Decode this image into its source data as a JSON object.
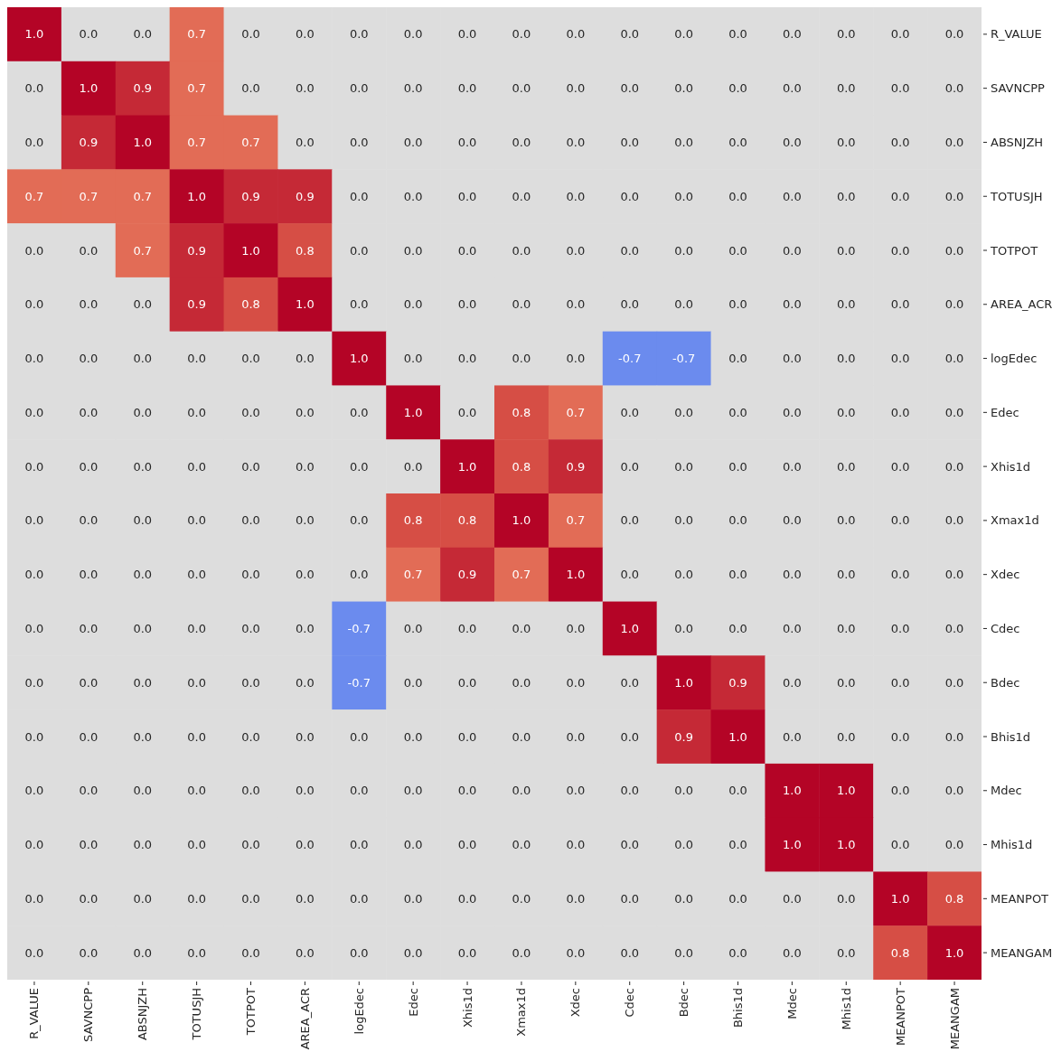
{
  "chart_data": {
    "type": "heatmap",
    "categories": [
      "R_VALUE",
      "SAVNCPP",
      "ABSNJZH",
      "TOTUSJH",
      "TOTPOT",
      "AREA_ACR",
      "logEdec",
      "Edec",
      "Xhis1d",
      "Xmax1d",
      "Xdec",
      "Cdec",
      "Bdec",
      "Bhis1d",
      "Mdec",
      "Mhis1d",
      "MEANPOT",
      "MEANGAM"
    ],
    "y_categories": [
      "R_VALUE",
      "SAVNCPP",
      "ABSNJZH",
      "TOTUSJH",
      "TOTPOT",
      "AREA_ACR",
      "logEdec",
      "Edec",
      "Xhis1d",
      "Xmax1d",
      "Xdec",
      "Cdec",
      "Bdec",
      "Bhis1d",
      "Mdec",
      "Mhis1d",
      "MEANPOT",
      "MEANGAM"
    ],
    "cells": [
      [
        1.0,
        0.0,
        0.0,
        0.7,
        0.0,
        0.0,
        0.0,
        0.0,
        0.0,
        0.0,
        0.0,
        0.0,
        0.0,
        0.0,
        0.0,
        0.0,
        0.0,
        0.0
      ],
      [
        0.0,
        1.0,
        0.9,
        0.7,
        0.0,
        0.0,
        0.0,
        0.0,
        0.0,
        0.0,
        0.0,
        0.0,
        0.0,
        0.0,
        0.0,
        0.0,
        0.0,
        0.0
      ],
      [
        0.0,
        0.9,
        1.0,
        0.7,
        0.7,
        0.0,
        0.0,
        0.0,
        0.0,
        0.0,
        0.0,
        0.0,
        0.0,
        0.0,
        0.0,
        0.0,
        0.0,
        0.0
      ],
      [
        0.7,
        0.7,
        0.7,
        1.0,
        0.9,
        0.9,
        0.0,
        0.0,
        0.0,
        0.0,
        0.0,
        0.0,
        0.0,
        0.0,
        0.0,
        0.0,
        0.0,
        0.0
      ],
      [
        0.0,
        0.0,
        0.7,
        0.9,
        1.0,
        0.8,
        0.0,
        0.0,
        0.0,
        0.0,
        0.0,
        0.0,
        0.0,
        0.0,
        0.0,
        0.0,
        0.0,
        0.0
      ],
      [
        0.0,
        0.0,
        0.0,
        0.9,
        0.8,
        1.0,
        0.0,
        0.0,
        0.0,
        0.0,
        0.0,
        0.0,
        0.0,
        0.0,
        0.0,
        0.0,
        0.0,
        0.0
      ],
      [
        0.0,
        0.0,
        0.0,
        0.0,
        0.0,
        0.0,
        1.0,
        0.0,
        0.0,
        0.0,
        0.0,
        -0.7,
        -0.7,
        0.0,
        0.0,
        0.0,
        0.0,
        0.0
      ],
      [
        0.0,
        0.0,
        0.0,
        0.0,
        0.0,
        0.0,
        0.0,
        1.0,
        0.0,
        0.8,
        0.7,
        0.0,
        0.0,
        0.0,
        0.0,
        0.0,
        0.0,
        0.0
      ],
      [
        0.0,
        0.0,
        0.0,
        0.0,
        0.0,
        0.0,
        0.0,
        0.0,
        1.0,
        0.8,
        0.9,
        0.0,
        0.0,
        0.0,
        0.0,
        0.0,
        0.0,
        0.0
      ],
      [
        0.0,
        0.0,
        0.0,
        0.0,
        0.0,
        0.0,
        0.0,
        0.8,
        0.8,
        1.0,
        0.7,
        0.0,
        0.0,
        0.0,
        0.0,
        0.0,
        0.0,
        0.0
      ],
      [
        0.0,
        0.0,
        0.0,
        0.0,
        0.0,
        0.0,
        0.0,
        0.7,
        0.9,
        0.7,
        1.0,
        0.0,
        0.0,
        0.0,
        0.0,
        0.0,
        0.0,
        0.0
      ],
      [
        0.0,
        0.0,
        0.0,
        0.0,
        0.0,
        0.0,
        -0.7,
        0.0,
        0.0,
        0.0,
        0.0,
        1.0,
        0.0,
        0.0,
        0.0,
        0.0,
        0.0,
        0.0
      ],
      [
        0.0,
        0.0,
        0.0,
        0.0,
        0.0,
        0.0,
        -0.7,
        0.0,
        0.0,
        0.0,
        0.0,
        0.0,
        1.0,
        0.9,
        0.0,
        0.0,
        0.0,
        0.0
      ],
      [
        0.0,
        0.0,
        0.0,
        0.0,
        0.0,
        0.0,
        0.0,
        0.0,
        0.0,
        0.0,
        0.0,
        0.0,
        0.9,
        1.0,
        0.0,
        0.0,
        0.0,
        0.0
      ],
      [
        0.0,
        0.0,
        0.0,
        0.0,
        0.0,
        0.0,
        0.0,
        0.0,
        0.0,
        0.0,
        0.0,
        0.0,
        0.0,
        0.0,
        1.0,
        1.0,
        0.0,
        0.0
      ],
      [
        0.0,
        0.0,
        0.0,
        0.0,
        0.0,
        0.0,
        0.0,
        0.0,
        0.0,
        0.0,
        0.0,
        0.0,
        0.0,
        0.0,
        1.0,
        1.0,
        0.0,
        0.0
      ],
      [
        0.0,
        0.0,
        0.0,
        0.0,
        0.0,
        0.0,
        0.0,
        0.0,
        0.0,
        0.0,
        0.0,
        0.0,
        0.0,
        0.0,
        0.0,
        0.0,
        1.0,
        0.8
      ],
      [
        0.0,
        0.0,
        0.0,
        0.0,
        0.0,
        0.0,
        0.0,
        0.0,
        0.0,
        0.0,
        0.0,
        0.0,
        0.0,
        0.0,
        0.0,
        0.0,
        0.8,
        1.0
      ]
    ],
    "cell_labels": [
      [
        "1.0",
        "0.0",
        "0.0",
        "0.7",
        "0.0",
        "0.0",
        "0.0",
        "0.0",
        "0.0",
        "0.0",
        "0.0",
        "0.0",
        "0.0",
        "0.0",
        "0.0",
        "0.0",
        "0.0",
        "0.0"
      ],
      [
        "0.0",
        "1.0",
        "0.9",
        "0.7",
        "0.0",
        "0.0",
        "0.0",
        "0.0",
        "0.0",
        "0.0",
        "0.0",
        "0.0",
        "0.0",
        "0.0",
        "0.0",
        "0.0",
        "0.0",
        "0.0"
      ],
      [
        "0.0",
        "0.9",
        "1.0",
        "0.7",
        "0.7",
        "0.0",
        "0.0",
        "0.0",
        "0.0",
        "0.0",
        "0.0",
        "0.0",
        "0.0",
        "0.0",
        "0.0",
        "0.0",
        "0.0",
        "0.0"
      ],
      [
        "0.7",
        "0.7",
        "0.7",
        "1.0",
        "0.9",
        "0.9",
        "0.0",
        "0.0",
        "0.0",
        "0.0",
        "0.0",
        "0.0",
        "0.0",
        "0.0",
        "0.0",
        "0.0",
        "0.0",
        "0.0"
      ],
      [
        "0.0",
        "0.0",
        "0.7",
        "0.9",
        "1.0",
        "0.8",
        "0.0",
        "0.0",
        "0.0",
        "0.0",
        "0.0",
        "0.0",
        "0.0",
        "0.0",
        "0.0",
        "0.0",
        "0.0",
        "0.0"
      ],
      [
        "0.0",
        "0.0",
        "0.0",
        "0.9",
        "0.8",
        "1.0",
        "0.0",
        "0.0",
        "0.0",
        "0.0",
        "0.0",
        "0.0",
        "0.0",
        "0.0",
        "0.0",
        "0.0",
        "0.0",
        "0.0"
      ],
      [
        "0.0",
        "0.0",
        "0.0",
        "0.0",
        "0.0",
        "0.0",
        "1.0",
        "0.0",
        "0.0",
        "0.0",
        "0.0",
        "-0.7",
        "-0.7",
        "0.0",
        "0.0",
        "0.0",
        "0.0",
        "0.0"
      ],
      [
        "0.0",
        "0.0",
        "0.0",
        "0.0",
        "0.0",
        "0.0",
        "0.0",
        "1.0",
        "0.0",
        "0.8",
        "0.7",
        "0.0",
        "0.0",
        "0.0",
        "0.0",
        "0.0",
        "0.0",
        "0.0"
      ],
      [
        "0.0",
        "0.0",
        "0.0",
        "0.0",
        "0.0",
        "0.0",
        "0.0",
        "0.0",
        "1.0",
        "0.8",
        "0.9",
        "0.0",
        "0.0",
        "0.0",
        "0.0",
        "0.0",
        "0.0",
        "0.0"
      ],
      [
        "0.0",
        "0.0",
        "0.0",
        "0.0",
        "0.0",
        "0.0",
        "0.0",
        "0.8",
        "0.8",
        "1.0",
        "0.7",
        "0.0",
        "0.0",
        "0.0",
        "0.0",
        "0.0",
        "0.0",
        "0.0"
      ],
      [
        "0.0",
        "0.0",
        "0.0",
        "0.0",
        "0.0",
        "0.0",
        "0.0",
        "0.7",
        "0.9",
        "0.7",
        "1.0",
        "0.0",
        "0.0",
        "0.0",
        "0.0",
        "0.0",
        "0.0",
        "0.0"
      ],
      [
        "0.0",
        "0.0",
        "0.0",
        "0.0",
        "0.0",
        "0.0",
        "-0.7",
        "0.0",
        "0.0",
        "0.0",
        "0.0",
        "1.0",
        "0.0",
        "0.0",
        "0.0",
        "0.0",
        "0.0",
        "0.0"
      ],
      [
        "0.0",
        "0.0",
        "0.0",
        "0.0",
        "0.0",
        "0.0",
        "-0.7",
        "0.0",
        "0.0",
        "0.0",
        "0.0",
        "0.0",
        "1.0",
        "0.9",
        "0.0",
        "0.0",
        "0.0",
        "0.0"
      ],
      [
        "0.0",
        "0.0",
        "0.0",
        "0.0",
        "0.0",
        "0.0",
        "0.0",
        "0.0",
        "0.0",
        "0.0",
        "0.0",
        "0.0",
        "0.9",
        "1.0",
        "0.0",
        "0.0",
        "0.0",
        "0.0"
      ],
      [
        "0.0",
        "0.0",
        "0.0",
        "0.0",
        "0.0",
        "0.0",
        "0.0",
        "0.0",
        "0.0",
        "0.0",
        "0.0",
        "0.0",
        "0.0",
        "0.0",
        "1.0",
        "1.0",
        "0.0",
        "0.0"
      ],
      [
        "0.0",
        "0.0",
        "0.0",
        "0.0",
        "0.0",
        "0.0",
        "0.0",
        "0.0",
        "0.0",
        "0.0",
        "0.0",
        "0.0",
        "0.0",
        "0.0",
        "1.0",
        "1.0",
        "0.0",
        "0.0"
      ],
      [
        "0.0",
        "0.0",
        "0.0",
        "0.0",
        "0.0",
        "0.0",
        "0.0",
        "0.0",
        "0.0",
        "0.0",
        "0.0",
        "0.0",
        "0.0",
        "0.0",
        "0.0",
        "0.0",
        "1.0",
        "0.8"
      ],
      [
        "0.0",
        "0.0",
        "0.0",
        "0.0",
        "0.0",
        "0.0",
        "0.0",
        "0.0",
        "0.0",
        "0.0",
        "0.0",
        "0.0",
        "0.0",
        "0.0",
        "0.0",
        "0.0",
        "0.8",
        "1.0"
      ]
    ]
  }
}
